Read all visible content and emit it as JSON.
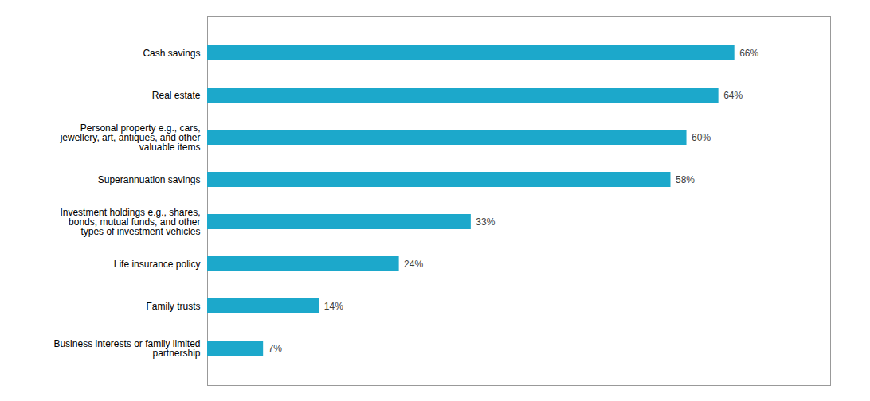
{
  "chart_data": {
    "type": "bar",
    "orientation": "horizontal",
    "categories": [
      "Business interests or family limited\npartnership",
      "Family trusts",
      "Life insurance policy",
      "Investment holdings e.g., shares,\nbonds, mutual funds, and other\ntypes of investment vehicles",
      "Superannuation savings",
      "Personal property e.g., cars,\njewellery, art, antiques, and other\nvaluable items",
      "Real estate",
      "Cash savings"
    ],
    "values": [
      7,
      14,
      24,
      33,
      58,
      60,
      64,
      66
    ],
    "value_labels": [
      "7%",
      "14%",
      "24%",
      "33%",
      "58%",
      "60%",
      "64%",
      "66%"
    ],
    "color": "#1ca8cb",
    "xlim": [
      0,
      78
    ],
    "xticks": [],
    "grid": false,
    "data_labels": true,
    "tick_labels": "y"
  }
}
